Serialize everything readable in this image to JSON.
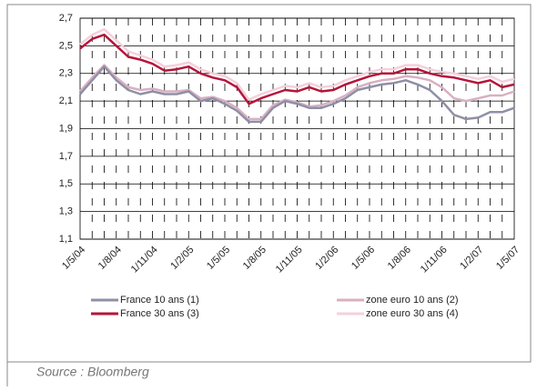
{
  "chart_data": {
    "type": "line",
    "categories": [
      "1/5/04",
      null,
      null,
      "1/8/04",
      null,
      null,
      "1/11/04",
      null,
      null,
      "1/2/05",
      null,
      null,
      "1/5/05",
      null,
      null,
      "1/8/05",
      null,
      null,
      "1/11/05",
      null,
      null,
      "1/2/06",
      null,
      null,
      "1/5/06",
      null,
      null,
      "1/8/06",
      null,
      null,
      "1/11/06",
      null,
      null,
      "1/2/07",
      null,
      null,
      "1/5/07"
    ],
    "series": [
      {
        "name": "France 10 ans (1)",
        "color": "#8f8fa6",
        "values": [
          2.15,
          2.25,
          2.35,
          2.25,
          2.18,
          2.15,
          2.17,
          2.15,
          2.15,
          2.17,
          2.1,
          2.12,
          2.08,
          2.03,
          1.95,
          1.95,
          2.05,
          2.1,
          2.08,
          2.05,
          2.05,
          2.08,
          2.12,
          2.18,
          2.2,
          2.22,
          2.23,
          2.25,
          2.22,
          2.18,
          2.1,
          2.0,
          1.97,
          1.98,
          2.02,
          2.02,
          2.05
        ]
      },
      {
        "name": "zone euro 10 ans (2)",
        "color": "#d8b0c2",
        "values": [
          2.17,
          2.27,
          2.36,
          2.27,
          2.2,
          2.18,
          2.19,
          2.17,
          2.17,
          2.18,
          2.12,
          2.13,
          2.1,
          2.05,
          1.97,
          1.97,
          2.07,
          2.11,
          2.09,
          2.06,
          2.07,
          2.1,
          2.14,
          2.2,
          2.23,
          2.25,
          2.26,
          2.28,
          2.27,
          2.25,
          2.2,
          2.12,
          2.1,
          2.12,
          2.14,
          2.14,
          2.17
        ]
      },
      {
        "name": "France 30 ans (3)",
        "color": "#b5153a",
        "values": [
          2.48,
          2.55,
          2.58,
          2.5,
          2.42,
          2.4,
          2.37,
          2.32,
          2.33,
          2.35,
          2.3,
          2.27,
          2.25,
          2.2,
          2.08,
          2.12,
          2.15,
          2.18,
          2.17,
          2.2,
          2.17,
          2.18,
          2.22,
          2.25,
          2.28,
          2.3,
          2.3,
          2.33,
          2.33,
          2.3,
          2.28,
          2.27,
          2.25,
          2.23,
          2.25,
          2.2,
          2.22
        ]
      },
      {
        "name": "zone euro 30 ans (4)",
        "color": "#f4d0dc",
        "values": [
          2.51,
          2.58,
          2.62,
          2.54,
          2.46,
          2.43,
          2.4,
          2.35,
          2.36,
          2.38,
          2.33,
          2.3,
          2.28,
          2.23,
          2.11,
          2.15,
          2.18,
          2.21,
          2.2,
          2.23,
          2.2,
          2.21,
          2.25,
          2.28,
          2.31,
          2.33,
          2.33,
          2.36,
          2.36,
          2.33,
          2.31,
          2.3,
          2.28,
          2.26,
          2.28,
          2.24,
          2.26
        ]
      }
    ],
    "ylim": [
      1.1,
      2.7
    ],
    "yticks": [
      {
        "value": 1.1,
        "label": "1,1"
      },
      {
        "value": 1.3,
        "label": "1,3"
      },
      {
        "value": 1.5,
        "label": "1,5"
      },
      {
        "value": 1.7,
        "label": "1,7"
      },
      {
        "value": 1.9,
        "label": "1,9"
      },
      {
        "value": 2.1,
        "label": "2,1"
      },
      {
        "value": 2.3,
        "label": "2,3"
      },
      {
        "value": 2.5,
        "label": "2,5"
      },
      {
        "value": 2.7,
        "label": "2,7"
      }
    ],
    "grid": true
  },
  "source": "Source : Bloomberg"
}
